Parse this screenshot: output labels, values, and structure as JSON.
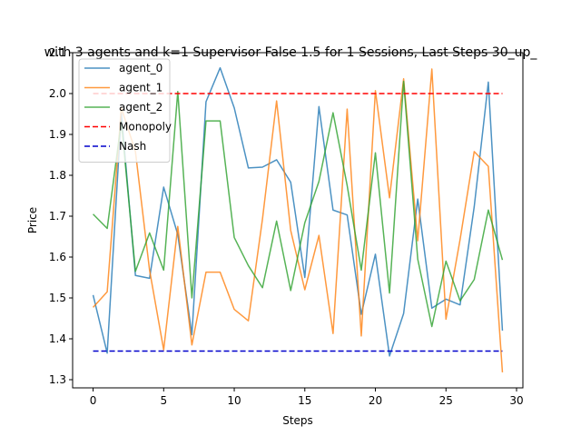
{
  "chart_data": {
    "type": "line",
    "title": "with 3 agents and k=1 Supervisor False 1.5 for 1 Sessions, Last Steps 30_up_",
    "xlabel": "Steps",
    "ylabel": "Price",
    "xlim": [
      -1.45,
      30.45
    ],
    "ylim": [
      1.28,
      2.1
    ],
    "x_ticks": [
      0,
      5,
      10,
      15,
      20,
      25,
      30
    ],
    "y_ticks": [
      1.3,
      1.4,
      1.5,
      1.6,
      1.7,
      1.8,
      1.9,
      2.0,
      2.1
    ],
    "y_tick_labels": [
      "1.3",
      "1.4",
      "1.5",
      "1.6",
      "1.7",
      "1.8",
      "1.9",
      "2.0",
      "2.1"
    ],
    "legend_position": "top-left",
    "x": [
      0,
      1,
      2,
      3,
      4,
      5,
      6,
      7,
      8,
      9,
      10,
      11,
      12,
      13,
      14,
      15,
      16,
      17,
      18,
      19,
      20,
      21,
      22,
      23,
      24,
      25,
      26,
      27,
      28,
      29
    ],
    "series": [
      {
        "name": "agent_0",
        "color": "#1f77b4",
        "style": "solid",
        "values": [
          1.507,
          1.365,
          1.952,
          1.555,
          1.548,
          1.771,
          1.655,
          1.41,
          1.98,
          2.063,
          1.965,
          1.818,
          1.82,
          1.838,
          1.783,
          1.55,
          1.968,
          1.715,
          1.703,
          1.46,
          1.607,
          1.358,
          1.462,
          1.742,
          1.475,
          1.497,
          1.483,
          1.723,
          2.028,
          1.42
        ]
      },
      {
        "name": "agent_1",
        "color": "#ff7f0e",
        "style": "solid",
        "values": [
          1.477,
          1.515,
          1.965,
          1.858,
          1.568,
          1.373,
          1.675,
          1.385,
          1.563,
          1.563,
          1.472,
          1.444,
          1.693,
          1.982,
          1.665,
          1.52,
          1.653,
          1.413,
          1.962,
          1.407,
          2.007,
          1.745,
          2.036,
          1.64,
          2.06,
          1.448,
          1.643,
          1.858,
          1.822,
          1.318
        ]
      },
      {
        "name": "agent_2",
        "color": "#2ca02c",
        "style": "solid",
        "values": [
          1.705,
          1.67,
          1.932,
          1.565,
          1.659,
          1.568,
          2.005,
          1.5,
          1.933,
          1.933,
          1.648,
          1.579,
          1.525,
          1.688,
          1.518,
          1.684,
          1.785,
          1.953,
          1.775,
          1.568,
          1.855,
          1.512,
          2.03,
          1.595,
          1.43,
          1.59,
          1.493,
          1.545,
          1.715,
          1.593
        ]
      },
      {
        "name": "Monopoly",
        "color": "#ff0000",
        "style": "dashed",
        "x": [
          0,
          29
        ],
        "values": [
          2.0,
          2.0
        ]
      },
      {
        "name": "Nash",
        "color": "#0000cc",
        "style": "dashed",
        "x": [
          0,
          29
        ],
        "values": [
          1.37,
          1.37
        ]
      }
    ]
  }
}
